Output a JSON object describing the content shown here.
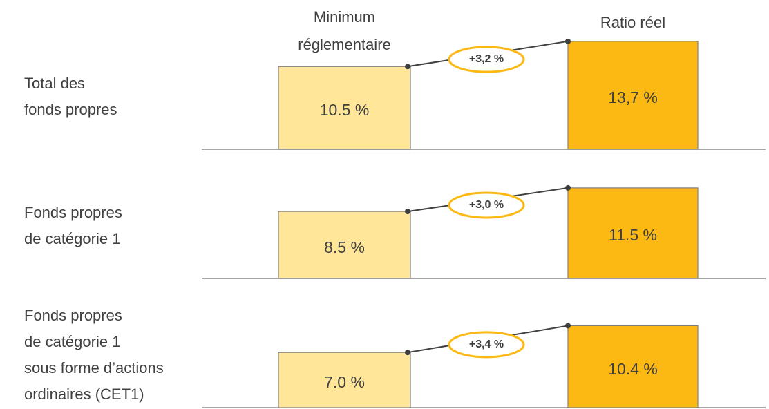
{
  "chart_data": {
    "type": "bar",
    "categories": [
      "Minimum\nréglementaire",
      "Ratio réel"
    ],
    "colors": [
      "#FFE699",
      "#FDB913"
    ],
    "series": [
      {
        "name": "Total des\nfonds propres",
        "values": [
          10.5,
          13.7
        ],
        "value_labels": [
          "10.5 %",
          "13,7 %"
        ],
        "difference": 3.2,
        "difference_label": "+3,2 %"
      },
      {
        "name": "Fonds propres\nde catégorie 1",
        "values": [
          8.5,
          11.5
        ],
        "value_labels": [
          "8.5 %",
          "11.5 %"
        ],
        "difference": 3.0,
        "difference_label": "+3,0 %"
      },
      {
        "name": "Fonds propres\nde catégorie 1\nsous forme d’actions\nordinaires (CET1)",
        "values": [
          7.0,
          10.4
        ],
        "value_labels": [
          "7.0 %",
          "10.4 %"
        ],
        "difference": 3.4,
        "difference_label": "+3,4 %"
      }
    ]
  }
}
